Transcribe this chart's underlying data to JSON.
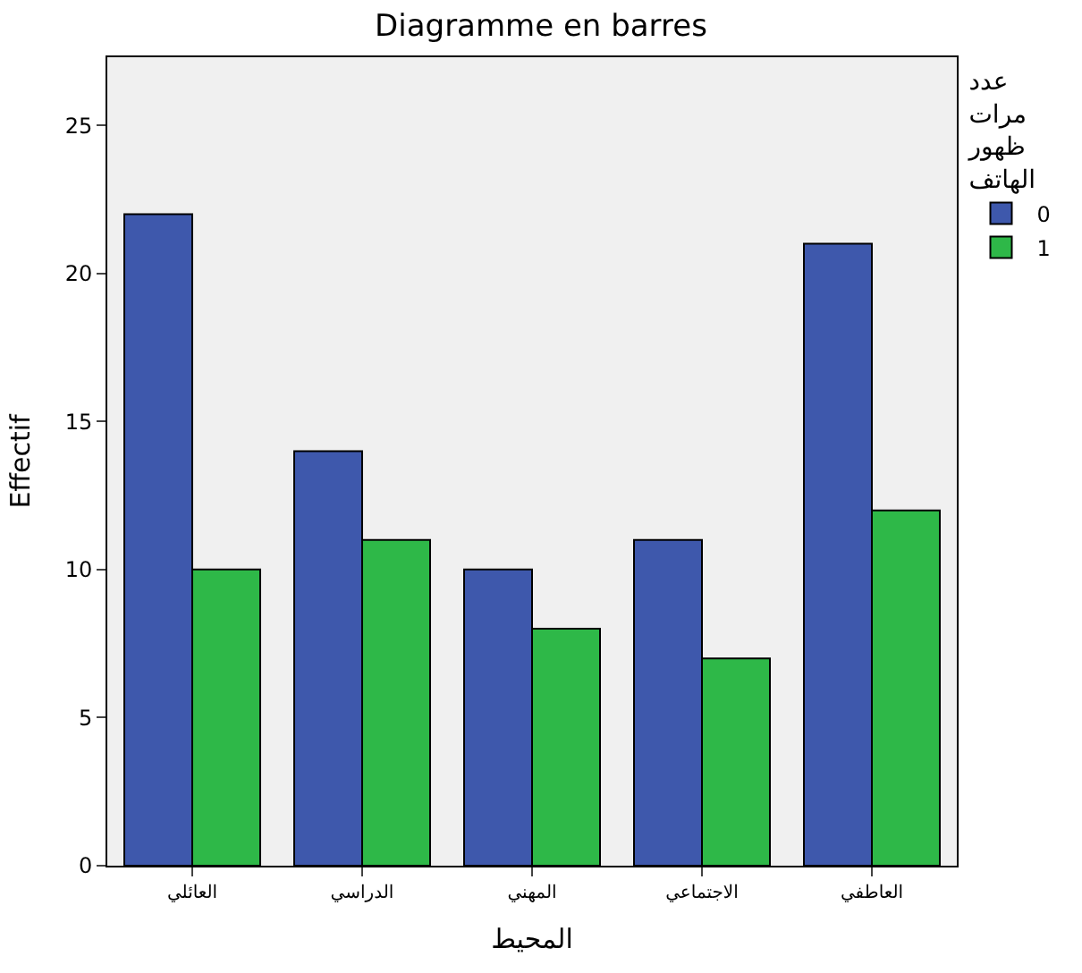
{
  "chart_data": {
    "type": "bar",
    "title": "Diagramme en barres",
    "xlabel": "المحيط",
    "ylabel": "Effectif",
    "legend_title": "عدد\nمرات\nظهور\nالهاتف",
    "categories": [
      "العائلي",
      "الدراسي",
      "المهني",
      "الاجتماعي",
      "العاطفي"
    ],
    "series": [
      {
        "name": "0",
        "color": "#3e58ac",
        "values": [
          22,
          14,
          10,
          11,
          21
        ]
      },
      {
        "name": "1",
        "color": "#2eb848",
        "values": [
          10,
          11,
          8,
          7,
          12
        ]
      }
    ],
    "ylim": [
      0,
      27.3
    ],
    "yticks": [
      0,
      5,
      10,
      15,
      20,
      25
    ],
    "grid": false,
    "legend": "right"
  }
}
